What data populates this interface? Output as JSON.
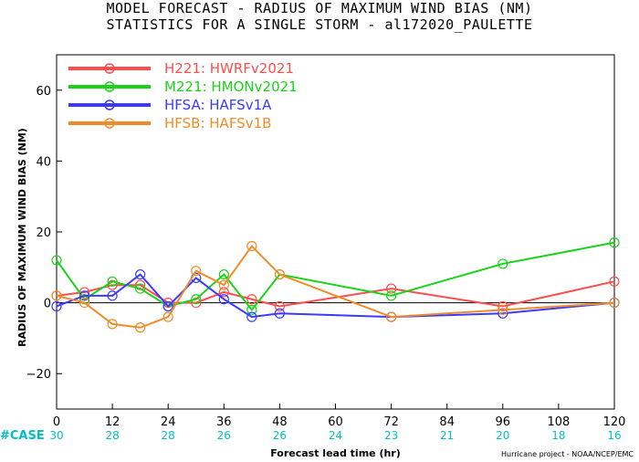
{
  "title_line1": "MODEL FORECAST - RADIUS OF MAXIMUM WIND BIAS (NM)",
  "title_line2": "STATISTICS FOR A SINGLE STORM - al172020_PAULETTE",
  "footer": "Hurricane project - NOAA/NCEP/EMC",
  "chart_data": {
    "type": "line",
    "xlabel": "Forecast lead time (hr)",
    "ylabel": "RADIUS OF MAXIMUM WIND BIAS (NM)",
    "xlim": [
      0,
      120
    ],
    "ylim": [
      -30,
      70
    ],
    "xticks": [
      0,
      12,
      24,
      36,
      48,
      60,
      72,
      84,
      96,
      108,
      120
    ],
    "yticks": [
      -20,
      0,
      20,
      40,
      60
    ],
    "zero_line": true,
    "grid": false,
    "legend_position": "top-left",
    "case_label": "#CASE",
    "case_x": [
      0,
      12,
      24,
      36,
      48,
      60,
      72,
      84,
      96,
      108,
      120
    ],
    "case_counts": [
      "30",
      "28",
      "28",
      "26",
      "26",
      "24",
      "23",
      "21",
      "20",
      "18",
      "16"
    ],
    "case_color": "#00bfbf",
    "series": [
      {
        "name": "H221: HWRFv2021",
        "color": "#ff4d4d",
        "x": [
          0,
          6,
          12,
          18,
          24,
          30,
          36,
          42,
          48,
          72,
          96,
          120
        ],
        "y": [
          2,
          3,
          5,
          5,
          0,
          0,
          3,
          1,
          -1,
          4,
          -1,
          6
        ]
      },
      {
        "name": "M221: HMONv2021",
        "color": "#19d319",
        "x": [
          0,
          6,
          12,
          18,
          24,
          30,
          36,
          42,
          48,
          72,
          96,
          120
        ],
        "y": [
          12,
          1,
          6,
          4,
          -1,
          1,
          8,
          -2,
          8,
          2,
          11,
          17
        ]
      },
      {
        "name": "HFSA: HAFSv1A",
        "color": "#3b3bff",
        "x": [
          0,
          6,
          12,
          18,
          24,
          30,
          36,
          42,
          48,
          72,
          96,
          120
        ],
        "y": [
          -1,
          2,
          2,
          8,
          -1,
          7,
          1,
          -4,
          -3,
          -4,
          -3,
          0
        ]
      },
      {
        "name": "HFSB: HAFSv1B",
        "color": "#f08c28",
        "x": [
          0,
          6,
          12,
          18,
          24,
          30,
          36,
          42,
          48,
          72,
          96,
          120
        ],
        "y": [
          2,
          0,
          -6,
          -7,
          -4,
          9,
          5,
          16,
          8,
          -4,
          -2,
          0
        ]
      }
    ]
  }
}
